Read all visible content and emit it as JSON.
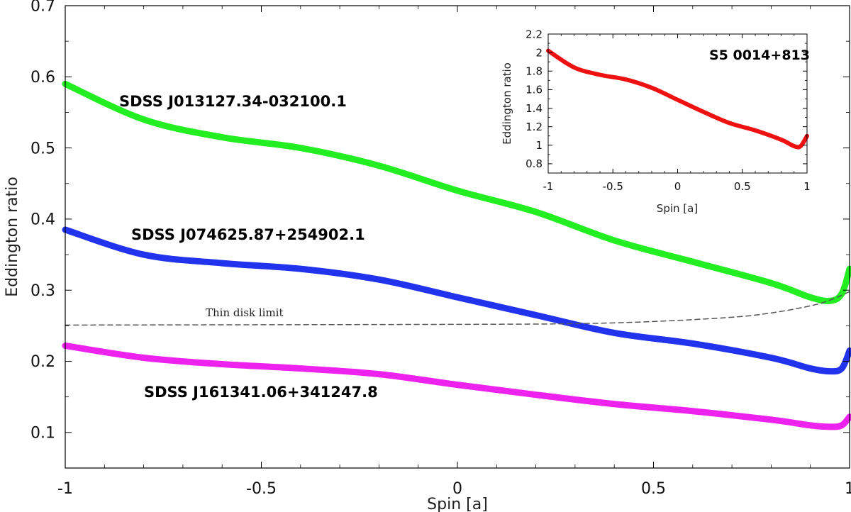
{
  "chart_data": [
    {
      "type": "line",
      "title": "",
      "xlabel": "Spin   [a]",
      "ylabel": "Eddington ratio",
      "xlim": [
        -1,
        1
      ],
      "ylim": [
        0.05,
        0.7
      ],
      "xticks": [
        -1,
        -0.5,
        0,
        0.5,
        1
      ],
      "xtick_labels": [
        "-1",
        "-0.5",
        "0",
        "0.5",
        "1"
      ],
      "yticks": [
        0.1,
        0.2,
        0.3,
        0.4,
        0.5,
        0.6,
        0.7
      ],
      "ytick_labels": [
        "0.1",
        "0.2",
        "0.3",
        "0.4",
        "0.5",
        "0.6",
        "0.7"
      ],
      "series": [
        {
          "name": "SDSS J013127.34-032100.1",
          "color": "#22ee22",
          "x": [
            -1,
            -0.8,
            -0.6,
            -0.4,
            -0.2,
            0,
            0.2,
            0.4,
            0.6,
            0.8,
            0.9,
            0.95,
            0.98,
            1
          ],
          "y": [
            0.59,
            0.54,
            0.515,
            0.5,
            0.475,
            0.44,
            0.41,
            0.37,
            0.34,
            0.31,
            0.29,
            0.285,
            0.295,
            0.33
          ]
        },
        {
          "name": "SDSS J074625.87+254902.1",
          "color": "#2233ee",
          "x": [
            -1,
            -0.8,
            -0.6,
            -0.4,
            -0.2,
            0,
            0.2,
            0.4,
            0.6,
            0.8,
            0.9,
            0.95,
            0.98,
            1
          ],
          "y": [
            0.385,
            0.35,
            0.338,
            0.33,
            0.315,
            0.29,
            0.265,
            0.24,
            0.225,
            0.205,
            0.19,
            0.186,
            0.19,
            0.215
          ]
        },
        {
          "name": "SDSS J161341.06+341247.8",
          "color": "#ee22ee",
          "x": [
            -1,
            -0.8,
            -0.6,
            -0.4,
            -0.2,
            0,
            0.2,
            0.4,
            0.6,
            0.8,
            0.9,
            0.95,
            0.98,
            1
          ],
          "y": [
            0.222,
            0.205,
            0.196,
            0.19,
            0.182,
            0.167,
            0.153,
            0.14,
            0.13,
            0.118,
            0.11,
            0.108,
            0.11,
            0.122
          ]
        },
        {
          "name": "Thin disk limit",
          "color": "#555555",
          "dashed": true,
          "x": [
            -1,
            0,
            0.3,
            0.5,
            0.7,
            0.8,
            0.9,
            0.95,
            1
          ],
          "y": [
            0.251,
            0.252,
            0.253,
            0.256,
            0.262,
            0.268,
            0.278,
            0.286,
            0.298
          ]
        }
      ],
      "labels": [
        {
          "text": "SDSS J013127.34-032100.1",
          "series": 0
        },
        {
          "text": "SDSS J074625.87+254902.1",
          "series": 1
        },
        {
          "text": "SDSS J161341.06+341247.8",
          "series": 2
        },
        {
          "text": "Thin disk limit",
          "series": 3
        }
      ]
    },
    {
      "type": "line",
      "title": "",
      "xlabel": "Spin  [a]",
      "ylabel": "Eddington ratio",
      "xlim": [
        -1,
        1
      ],
      "ylim": [
        0.7,
        2.2
      ],
      "xticks": [
        -1,
        -0.5,
        0,
        0.5,
        1
      ],
      "xtick_labels": [
        "-1",
        "-0.5",
        "0",
        "0.5",
        "1"
      ],
      "yticks": [
        0.8,
        1,
        1.2,
        1.4,
        1.6,
        1.8,
        2,
        2.2
      ],
      "ytick_labels": [
        "0.8",
        "1",
        "1.2",
        "1.4",
        "1.6",
        "1.8",
        "2",
        "2.2"
      ],
      "series": [
        {
          "name": "S5 0014+813",
          "color": "#ee1111",
          "x": [
            -1,
            -0.8,
            -0.6,
            -0.4,
            -0.2,
            0,
            0.2,
            0.4,
            0.6,
            0.8,
            0.9,
            0.95,
            1
          ],
          "y": [
            2.02,
            1.84,
            1.76,
            1.71,
            1.62,
            1.49,
            1.36,
            1.24,
            1.16,
            1.06,
            0.99,
            0.99,
            1.1
          ]
        }
      ],
      "labels": [
        {
          "text": "S5 0014+813",
          "series": 0
        }
      ]
    }
  ]
}
